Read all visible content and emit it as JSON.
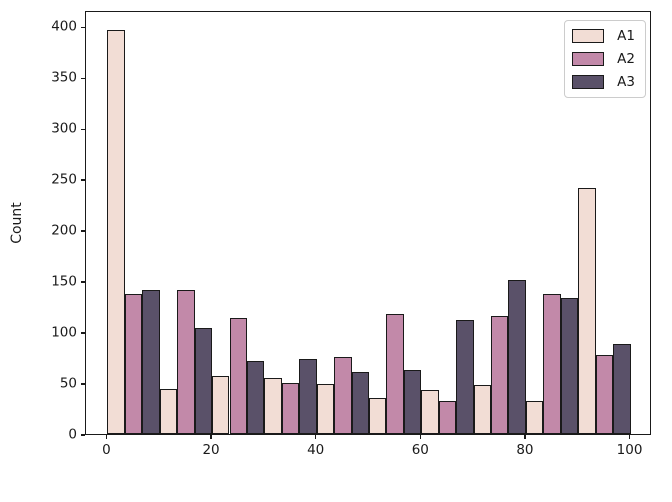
{
  "chart_data": {
    "type": "bar",
    "subtype": "grouped-histogram",
    "title": "",
    "xlabel": "",
    "ylabel": "Count",
    "bin_edges": [
      0,
      10,
      20,
      30,
      40,
      50,
      60,
      70,
      80,
      90,
      100
    ],
    "categories": [
      "0-10",
      "10-20",
      "20-30",
      "30-40",
      "40-50",
      "50-60",
      "60-70",
      "70-80",
      "80-90",
      "90-100"
    ],
    "series": [
      {
        "name": "A1",
        "color": "#f2ddd5",
        "values": [
          396,
          44,
          57,
          55,
          49,
          35,
          43,
          48,
          32,
          241
        ]
      },
      {
        "name": "A2",
        "color": "#c289a9",
        "values": [
          137,
          141,
          114,
          50,
          76,
          118,
          32,
          116,
          137,
          78
        ]
      },
      {
        "name": "A3",
        "color": "#5a5169",
        "values": [
          141,
          104,
          72,
          74,
          61,
          63,
          112,
          151,
          133,
          88
        ]
      }
    ],
    "xticks": [
      0,
      20,
      40,
      60,
      80,
      100
    ],
    "yticks": [
      0,
      50,
      100,
      150,
      200,
      250,
      300,
      350,
      400
    ],
    "xlim": [
      -4.1,
      104.1
    ],
    "ylim": [
      0,
      416
    ],
    "grid": false,
    "legend": {
      "position": "upper-right",
      "entries": [
        "A1",
        "A2",
        "A3"
      ]
    },
    "bar_edge_color": "#1a1a1a",
    "background_color": "#ffffff"
  }
}
